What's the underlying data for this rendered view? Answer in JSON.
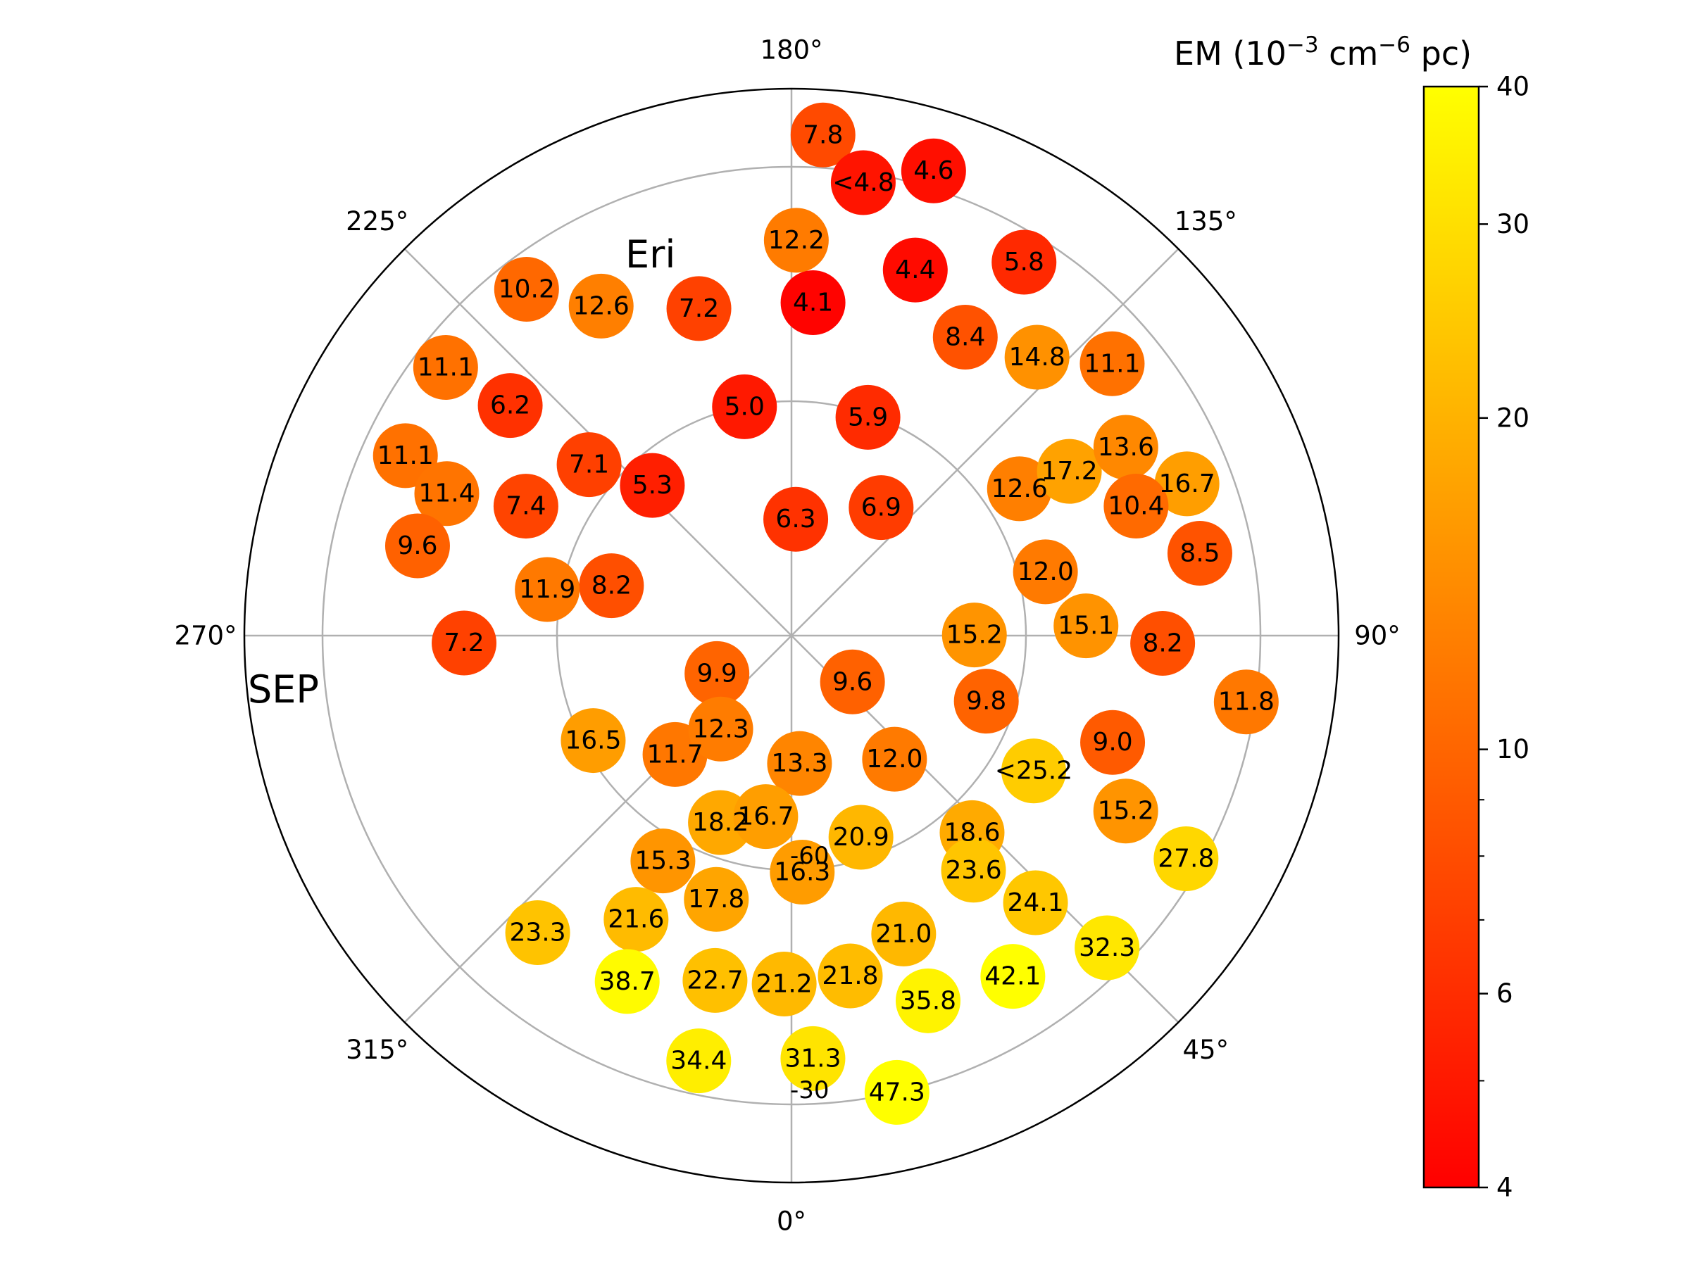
{
  "chart_data": {
    "type": "scatter",
    "projection": "polar",
    "theta_direction": "counterclockwise",
    "theta_zero_location": "bottom",
    "angle_tick_labels": [
      "0°",
      "45°",
      "90°",
      "135°",
      "180°",
      "225°",
      "270°",
      "315°"
    ],
    "radial_tick_labels": [
      "-60",
      "-30"
    ],
    "radial_range": [
      -90,
      -20
    ],
    "grid": true,
    "region_labels": [
      "Eri",
      "SEP"
    ],
    "colorbar": {
      "title": "EM (10−3 cm−6 pc)",
      "title_base": "EM (10",
      "title_exp1": "−3",
      "title_mid": " cm",
      "title_exp2": "−6",
      "title_end": " pc)",
      "scale": "log",
      "range": [
        4,
        40
      ],
      "tick_labels": [
        "4",
        "6",
        "10",
        "20",
        "30",
        "40"
      ],
      "minor_ticks": [
        5,
        7,
        8,
        9
      ],
      "colormap": "autumn",
      "color_low": "#ff0000",
      "color_high": "#ffff00"
    },
    "points": [
      {
        "theta": 176.4,
        "r": -25.8,
        "value": 7.8,
        "label": "7.8"
      },
      {
        "theta": 163.0,
        "r": -27.8,
        "value": 4.6,
        "label": "4.6"
      },
      {
        "theta": 171.0,
        "r": -31.3,
        "value": 4.8,
        "label": "<4.8"
      },
      {
        "theta": 148.1,
        "r": -33.7,
        "value": 5.8,
        "label": "5.8"
      },
      {
        "theta": 179.3,
        "r": -39.4,
        "value": 12.2,
        "label": "12.2"
      },
      {
        "theta": 161.3,
        "r": -40.6,
        "value": 4.4,
        "label": "4.4"
      },
      {
        "theta": 130.3,
        "r": -36.2,
        "value": 11.1,
        "label": "11.1"
      },
      {
        "theta": 138.6,
        "r": -42.5,
        "value": 14.8,
        "label": "14.8"
      },
      {
        "theta": 149.8,
        "r": -45.8,
        "value": 8.4,
        "label": "8.4"
      },
      {
        "theta": 176.3,
        "r": -47.3,
        "value": 4.1,
        "label": "4.1"
      },
      {
        "theta": 195.8,
        "r": -46.5,
        "value": 7.2,
        "label": "7.2"
      },
      {
        "theta": 210.0,
        "r": -41.3,
        "value": 12.6,
        "label": "12.6"
      },
      {
        "theta": 217.4,
        "r": -34.2,
        "value": 10.2,
        "label": "10.2"
      },
      {
        "theta": 232.2,
        "r": -34.0,
        "value": 11.1,
        "label": "11.1"
      },
      {
        "theta": 230.7,
        "r": -43.5,
        "value": 6.2,
        "label": "6.2"
      },
      {
        "theta": 245.0,
        "r": -35.5,
        "value": 11.1,
        "label": "11.1"
      },
      {
        "theta": 247.6,
        "r": -42.3,
        "value": 11.4,
        "label": "11.4"
      },
      {
        "theta": 244.0,
        "r": -52.2,
        "value": 7.4,
        "label": "7.4"
      },
      {
        "theta": 229.8,
        "r": -56.1,
        "value": 7.1,
        "label": "7.1"
      },
      {
        "theta": 191.6,
        "r": -60.1,
        "value": 5.0,
        "label": "5.0"
      },
      {
        "theta": 160.7,
        "r": -60.4,
        "value": 5.9,
        "label": "5.9"
      },
      {
        "theta": 122.8,
        "r": -55.3,
        "value": 12.6,
        "label": "12.6"
      },
      {
        "theta": 120.6,
        "r": -48.7,
        "value": 17.2,
        "label": "17.2"
      },
      {
        "theta": 119.4,
        "r": -40.9,
        "value": 13.6,
        "label": "13.6"
      },
      {
        "theta": 111.0,
        "r": -35.8,
        "value": 16.7,
        "label": "16.7"
      },
      {
        "theta": 110.6,
        "r": -42.9,
        "value": 10.4,
        "label": "10.4"
      },
      {
        "theta": 101.4,
        "r": -36.7,
        "value": 8.5,
        "label": "8.5"
      },
      {
        "theta": 104.1,
        "r": -56.5,
        "value": 12.0,
        "label": "12.0"
      },
      {
        "theta": 145.0,
        "r": -70.0,
        "value": 6.9,
        "label": "6.9"
      },
      {
        "theta": 222.8,
        "r": -63.8,
        "value": 5.3,
        "label": "5.3"
      },
      {
        "theta": 177.9,
        "r": -75.1,
        "value": 6.3,
        "label": "6.3"
      },
      {
        "theta": 254.5,
        "r": -66.1,
        "value": 8.2,
        "label": "8.2"
      },
      {
        "theta": 259.3,
        "r": -58.2,
        "value": 11.9,
        "label": "11.9"
      },
      {
        "theta": 256.5,
        "r": -40.8,
        "value": 9.6,
        "label": "9.6"
      },
      {
        "theta": 271.3,
        "r": -48.1,
        "value": 7.2,
        "label": "7.2"
      },
      {
        "theta": 90.2,
        "r": -66.6,
        "value": 15.2,
        "label": "15.2"
      },
      {
        "theta": 91.9,
        "r": -52.3,
        "value": 15.1,
        "label": "15.1"
      },
      {
        "theta": 88.8,
        "r": -42.5,
        "value": 8.2,
        "label": "8.2"
      },
      {
        "theta": 81.7,
        "r": -31.2,
        "value": 11.8,
        "label": "11.8"
      },
      {
        "theta": 297.9,
        "r": -61.3,
        "value": 16.5,
        "label": "16.5"
      },
      {
        "theta": 297.0,
        "r": -79.3,
        "value": 9.9,
        "label": "9.9"
      },
      {
        "theta": 52.8,
        "r": -80.2,
        "value": 9.6,
        "label": "9.6"
      },
      {
        "theta": 71.4,
        "r": -63.7,
        "value": 9.8,
        "label": "9.8"
      },
      {
        "theta": 71.6,
        "r": -46.7,
        "value": 9.0,
        "label": "9.0"
      },
      {
        "theta": 60.8,
        "r": -54.5,
        "value": 25.2,
        "label": "<25.2"
      },
      {
        "theta": 62.3,
        "r": -41.7,
        "value": 15.2,
        "label": "15.2"
      },
      {
        "theta": 60.5,
        "r": -32.0,
        "value": 27.8,
        "label": "27.8"
      },
      {
        "theta": 315.6,
        "r": -68.7,
        "value": 11.7,
        "label": "11.7"
      },
      {
        "theta": 322.9,
        "r": -75.0,
        "value": 12.3,
        "label": "12.3"
      },
      {
        "theta": 39.8,
        "r": -69.4,
        "value": 12.0,
        "label": "12.0"
      },
      {
        "theta": 3.6,
        "r": -73.6,
        "value": 13.3,
        "label": "13.3"
      },
      {
        "theta": 42.5,
        "r": -55.8,
        "value": 18.6,
        "label": "18.6"
      },
      {
        "theta": 330.3,
        "r": -56.8,
        "value": 15.3,
        "label": "15.3"
      },
      {
        "theta": 339.2,
        "r": -64.4,
        "value": 18.2,
        "label": "18.2"
      },
      {
        "theta": 351.9,
        "r": -66.6,
        "value": 16.7,
        "label": "16.7"
      },
      {
        "theta": 19.0,
        "r": -62.7,
        "value": 20.9,
        "label": "20.9"
      },
      {
        "theta": 37.8,
        "r": -52.0,
        "value": 23.6,
        "label": "23.6"
      },
      {
        "theta": 42.4,
        "r": -43.7,
        "value": 24.1,
        "label": "24.1"
      },
      {
        "theta": 45.3,
        "r": -33.2,
        "value": 32.3,
        "label": "32.3"
      },
      {
        "theta": 2.6,
        "r": -59.7,
        "value": 16.3,
        "label": "16.3"
      },
      {
        "theta": 20.6,
        "r": -49.2,
        "value": 21.0,
        "label": "21.0"
      },
      {
        "theta": 9.8,
        "r": -45.8,
        "value": 21.8,
        "label": "21.8"
      },
      {
        "theta": 358.8,
        "r": -45.4,
        "value": 21.2,
        "label": "21.2"
      },
      {
        "theta": 344.1,
        "r": -54.9,
        "value": 17.8,
        "label": "17.8"
      },
      {
        "theta": 331.3,
        "r": -48.6,
        "value": 21.6,
        "label": "21.6"
      },
      {
        "theta": 319.5,
        "r": -40.0,
        "value": 23.3,
        "label": "23.3"
      },
      {
        "theta": 334.6,
        "r": -41.0,
        "value": 38.7,
        "label": "38.7"
      },
      {
        "theta": 347.5,
        "r": -44.8,
        "value": 22.7,
        "label": "22.7"
      },
      {
        "theta": 20.5,
        "r": -40.1,
        "value": 35.8,
        "label": "35.8"
      },
      {
        "theta": 33.0,
        "r": -38.0,
        "value": 42.1,
        "label": "42.1"
      },
      {
        "theta": 347.7,
        "r": -34.3,
        "value": 34.4,
        "label": "34.4"
      },
      {
        "theta": 2.9,
        "r": -35.8,
        "value": 31.3,
        "label": "31.3"
      },
      {
        "theta": 13.0,
        "r": -30.0,
        "value": 47.3,
        "label": "47.3"
      }
    ]
  }
}
